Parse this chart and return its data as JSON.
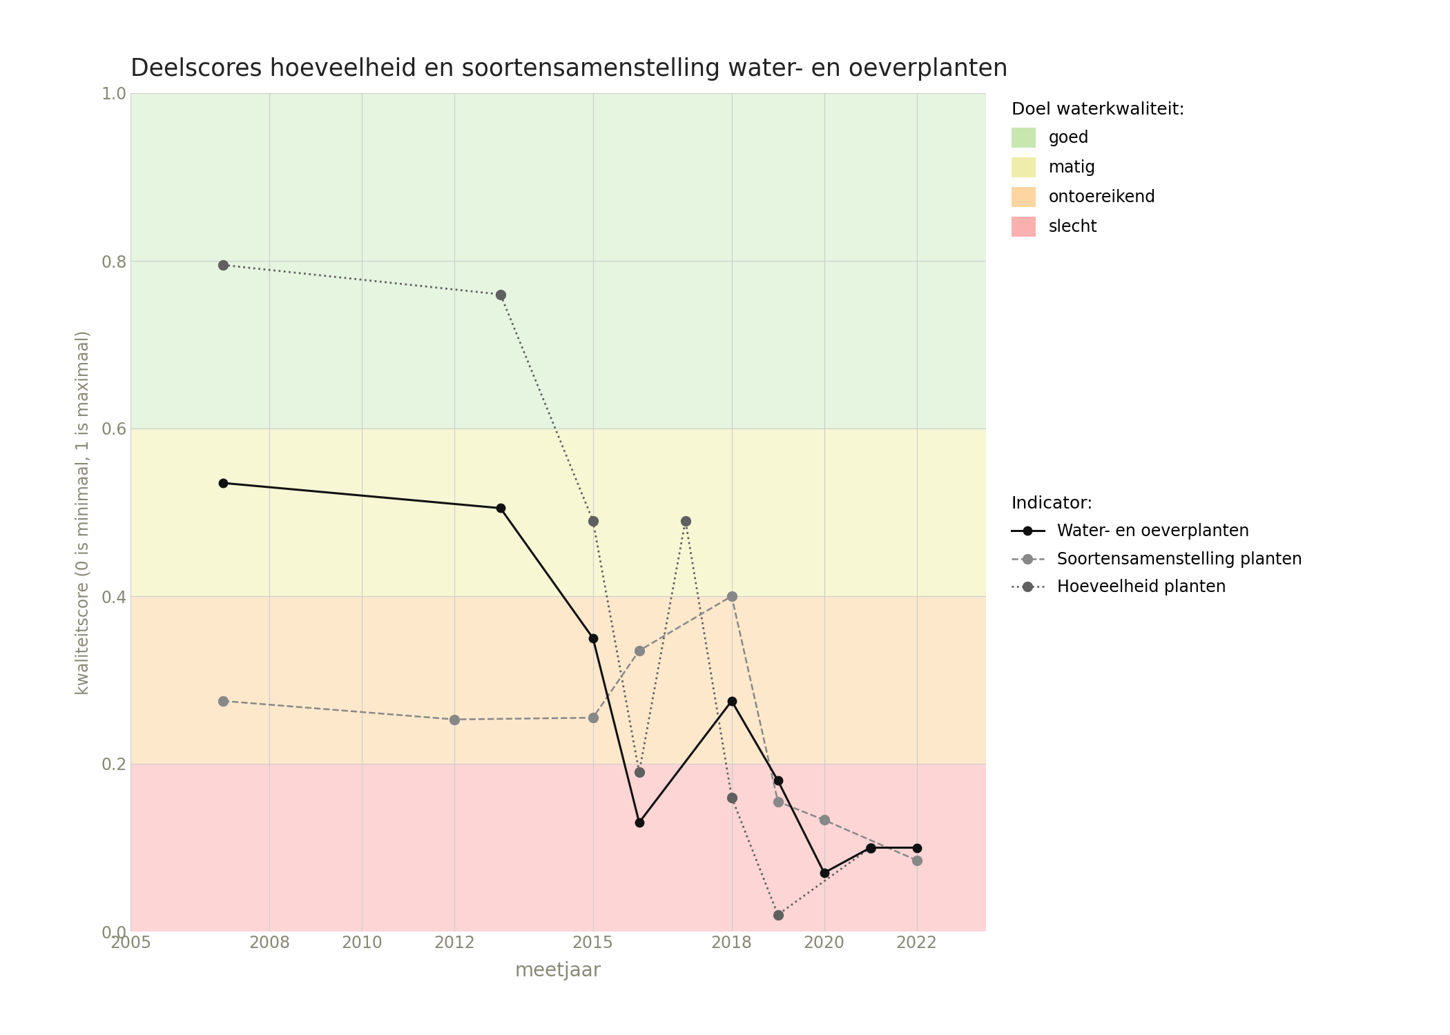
{
  "title": "Deelscores hoeveelheid en soortensamenstelling water- en oeverplanten",
  "xlabel": "meetjaar",
  "ylabel": "kwaliteitscore (0 is minimaal, 1 is maximaal)",
  "xlim": [
    2005,
    2023.5
  ],
  "ylim": [
    0.0,
    1.0
  ],
  "xticks": [
    2005,
    2008,
    2010,
    2012,
    2015,
    2018,
    2020,
    2022
  ],
  "yticks": [
    0.0,
    0.2,
    0.4,
    0.6,
    0.8,
    1.0
  ],
  "bg_colors": {
    "goed": {
      "ymin": 0.6,
      "ymax": 1.0,
      "color": "#e5f5e0"
    },
    "matig": {
      "ymin": 0.4,
      "ymax": 0.6,
      "color": "#f7f7d4"
    },
    "ontoereikend": {
      "ymin": 0.2,
      "ymax": 0.4,
      "color": "#fde8cc"
    },
    "slecht": {
      "ymin": 0.0,
      "ymax": 0.2,
      "color": "#fdd5d5"
    }
  },
  "line_water": {
    "x": [
      2007,
      2013,
      2015,
      2016,
      2018,
      2019,
      2020,
      2021,
      2022
    ],
    "y": [
      0.535,
      0.505,
      0.35,
      0.13,
      0.275,
      0.18,
      0.07,
      0.1,
      0.1
    ],
    "color": "#111111",
    "linestyle": "solid",
    "linewidth": 2.2,
    "marker": "o",
    "markersize": 9,
    "label": "Water- en oeverplanten"
  },
  "line_soorten": {
    "x": [
      2007,
      2012,
      2015,
      2016,
      2018,
      2019,
      2020,
      2022
    ],
    "y": [
      0.275,
      0.253,
      0.255,
      0.335,
      0.4,
      0.155,
      0.133,
      0.085
    ],
    "color": "#888888",
    "linestyle": "dashed",
    "linewidth": 1.8,
    "marker": "o",
    "markersize": 10,
    "label": "Soortensamenstelling planten"
  },
  "line_hoeveelheid": {
    "x": [
      2007,
      2013,
      2015,
      2016,
      2017,
      2018,
      2019,
      2021
    ],
    "y": [
      0.795,
      0.76,
      0.49,
      0.19,
      0.49,
      0.16,
      0.02,
      0.1
    ],
    "color": "#606060",
    "linestyle": "dotted",
    "linewidth": 2.0,
    "marker": "o",
    "markersize": 10,
    "label": "Hoeveelheid planten"
  },
  "legend_quality_labels": [
    "goed",
    "matig",
    "ontoereikend",
    "slecht"
  ],
  "legend_quality_colors": [
    "#c8e6b0",
    "#eeeeaa",
    "#fdd5a0",
    "#fbb0b0"
  ],
  "figsize": [
    21.0,
    15.0
  ],
  "dpi": 100
}
